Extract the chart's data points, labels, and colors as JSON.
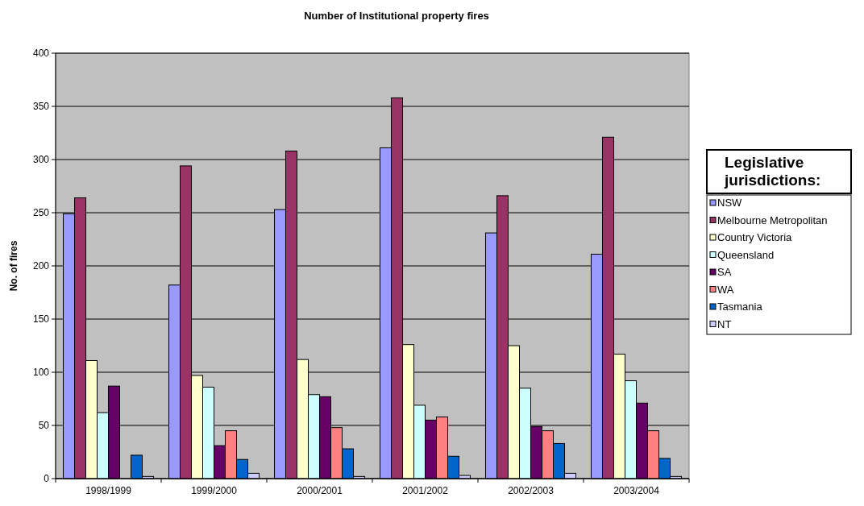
{
  "chart_data": {
    "type": "bar",
    "title": "Number of Institutional property fires",
    "ylabel": "No. of fires",
    "legend_title": "Legislative jurisdictions:",
    "categories": [
      "1998/1999",
      "1999/2000",
      "2000/2001",
      "2001/2002",
      "2002/2003",
      "2003/2004"
    ],
    "series": [
      {
        "name": "NSW",
        "color": "#9999ff",
        "values": [
          249,
          182,
          253,
          311,
          231,
          211
        ]
      },
      {
        "name": "Melbourne Metropolitan",
        "color": "#993366",
        "values": [
          264,
          294,
          308,
          358,
          266,
          321
        ]
      },
      {
        "name": "Country Victoria",
        "color": "#ffffcc",
        "values": [
          111,
          97,
          112,
          126,
          125,
          117
        ]
      },
      {
        "name": "Queensland",
        "color": "#ccffff",
        "values": [
          62,
          86,
          79,
          69,
          85,
          92
        ]
      },
      {
        "name": "SA",
        "color": "#660066",
        "values": [
          87,
          31,
          77,
          55,
          49,
          71
        ]
      },
      {
        "name": "WA",
        "color": "#ff8080",
        "values": [
          0,
          45,
          48,
          58,
          45,
          45
        ]
      },
      {
        "name": "Tasmania",
        "color": "#0066cc",
        "values": [
          22,
          18,
          28,
          21,
          33,
          19
        ]
      },
      {
        "name": "NT",
        "color": "#ccccff",
        "values": [
          2,
          5,
          2,
          3,
          5,
          2
        ]
      }
    ],
    "ylim": [
      0,
      400
    ],
    "yticks": [
      0,
      50,
      100,
      150,
      200,
      250,
      300,
      350,
      400
    ],
    "grid": "y",
    "legend": "right"
  }
}
